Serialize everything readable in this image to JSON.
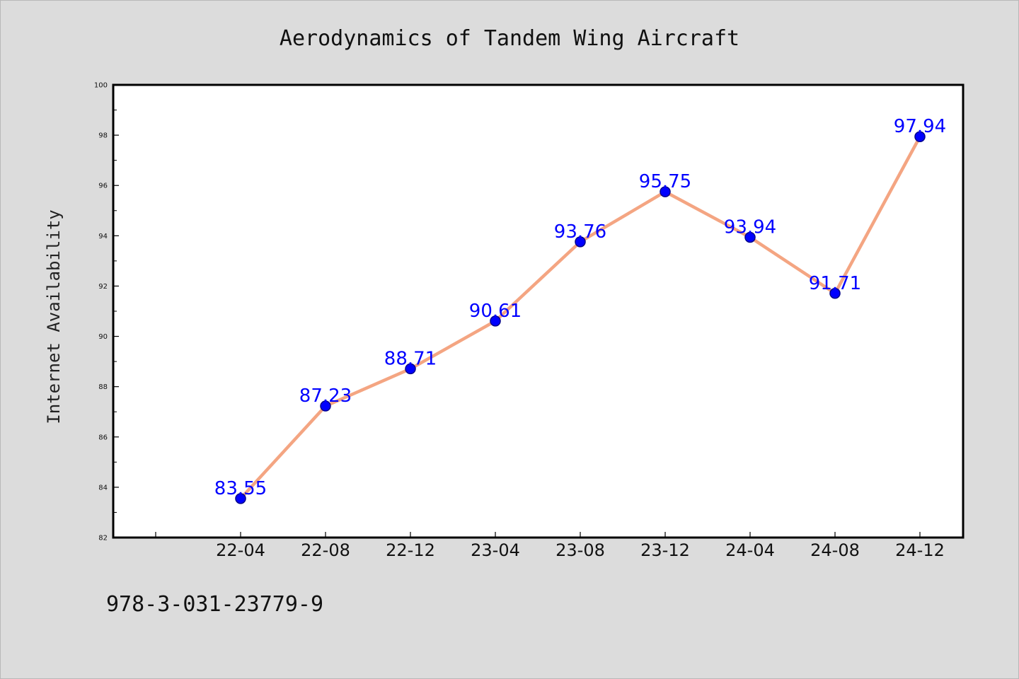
{
  "chart_data": {
    "type": "line",
    "title": "Aerodynamics of Tandem Wing Aircraft",
    "xlabel": "",
    "ylabel": "Internet Availability",
    "categories": [
      "22-04",
      "22-08",
      "22-12",
      "23-04",
      "23-08",
      "23-12",
      "24-04",
      "24-08",
      "24-12"
    ],
    "series": [
      {
        "values": [
          83.55,
          87.23,
          88.71,
          90.61,
          93.76,
          95.75,
          93.94,
          91.71,
          97.94
        ],
        "data_labels": [
          "83.55",
          "87.23",
          "88.71",
          "90.61",
          "93.76",
          "95.75",
          "93.94",
          "91.71",
          "97.94"
        ]
      }
    ],
    "ylim": [
      82,
      100
    ],
    "yticks": [
      "82",
      "84",
      "86",
      "88",
      "90",
      "92",
      "94",
      "96",
      "98",
      "100"
    ],
    "grid": false,
    "legend": "none",
    "colors": {
      "line": "#f4a582",
      "marker": "#0000ff",
      "marker_edge": "#00008b",
      "data_label": "#0000ff",
      "plot_background": "#ffffff",
      "figure_background": "#dcdcdc"
    }
  },
  "footer": {
    "isbn": "978-3-031-23779-9"
  }
}
